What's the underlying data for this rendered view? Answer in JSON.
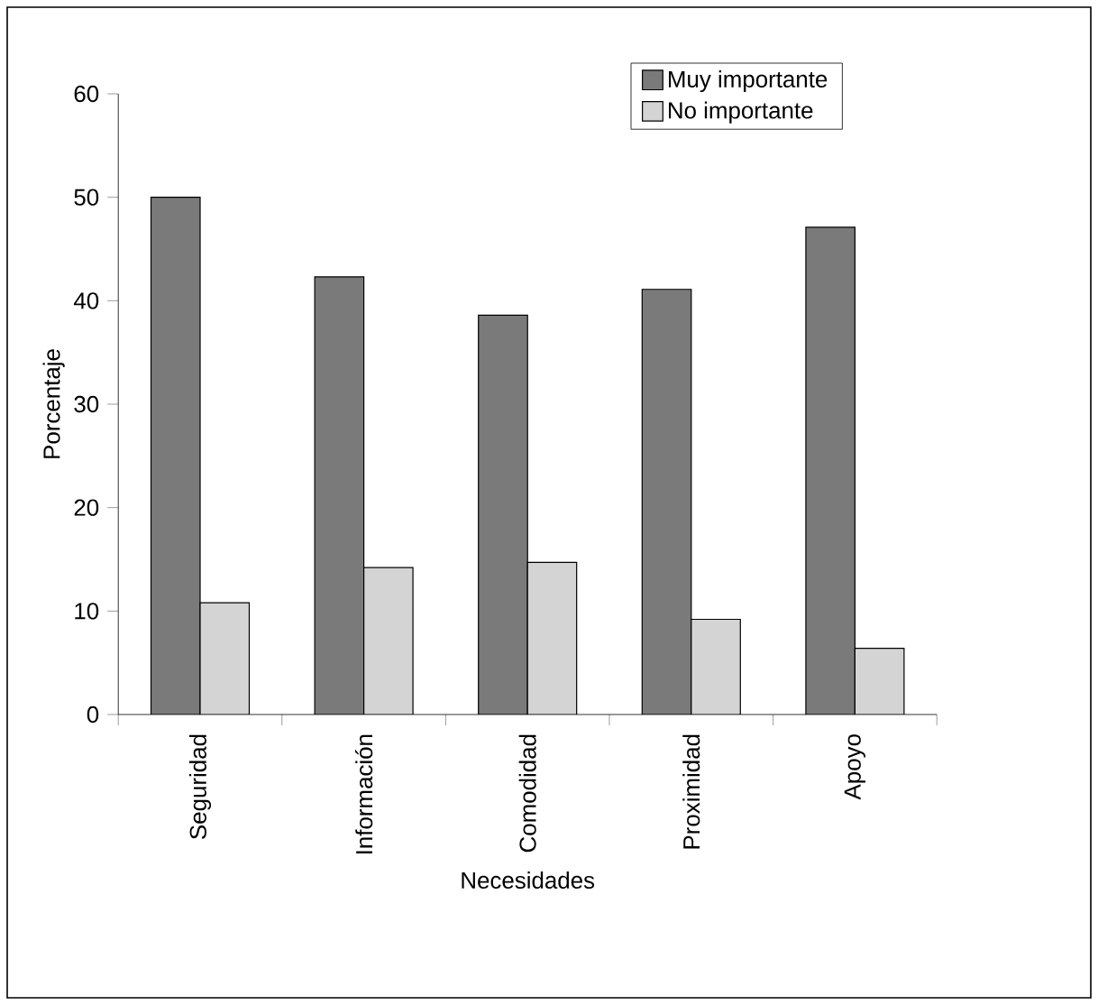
{
  "chart_data": {
    "type": "bar",
    "xlabel": "Necesidades",
    "ylabel": "Porcentaje",
    "categories": [
      "Seguridad",
      "Información",
      "Comodidad",
      "Proximidad",
      "Apoyo"
    ],
    "series": [
      {
        "name": "Muy importante",
        "color": "#7a7a7a",
        "values": [
          50,
          42.3,
          38.6,
          41.1,
          47.1
        ]
      },
      {
        "name": "No importante",
        "color": "#d4d4d4",
        "values": [
          10.8,
          14.2,
          14.7,
          9.2,
          6.4
        ]
      }
    ],
    "ylim": [
      0,
      60
    ],
    "yticks": [
      0,
      10,
      20,
      30,
      40,
      50,
      60
    ],
    "legend": "top right"
  }
}
